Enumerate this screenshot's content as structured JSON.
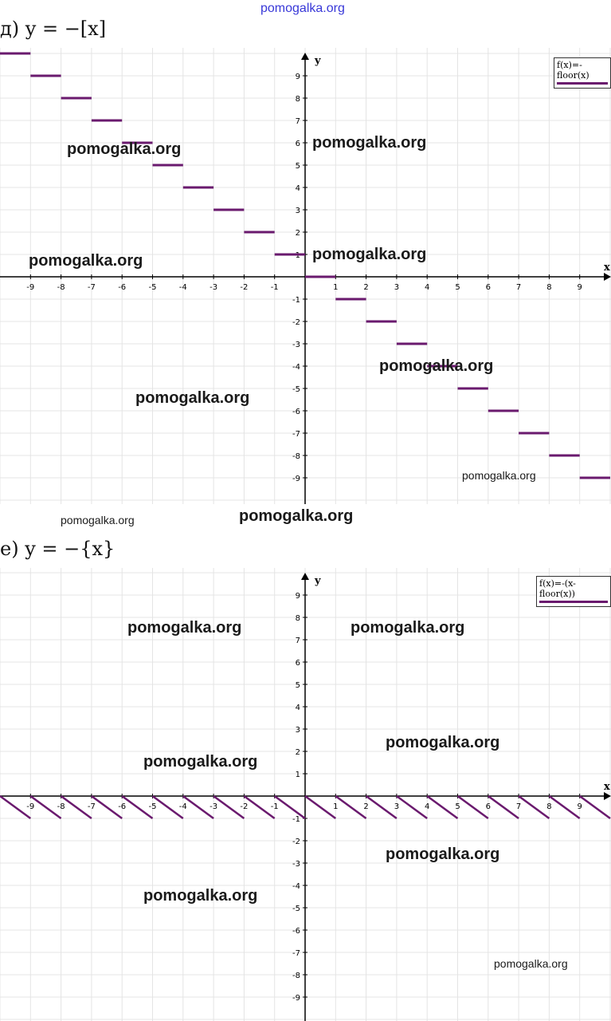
{
  "header_watermark": "pomogalka.org",
  "chart_data": [
    {
      "type": "line",
      "title": "д) y = −[x]",
      "legend": "f(x)=-floor(x)",
      "legend_position": "top-right",
      "xlabel": "x",
      "ylabel": "y",
      "xlim": [
        -10,
        10
      ],
      "ylim": [
        -10,
        10
      ],
      "xticks": [
        -9,
        -8,
        -7,
        -6,
        -5,
        -4,
        -3,
        -2,
        -1,
        1,
        2,
        3,
        4,
        5,
        6,
        7,
        8,
        9
      ],
      "yticks": [
        -9,
        -8,
        -7,
        -6,
        -5,
        -4,
        -3,
        -2,
        -1,
        1,
        2,
        3,
        4,
        5,
        6,
        7,
        8,
        9
      ],
      "grid": true,
      "function": "-floor(x)",
      "series": [
        {
          "name": "f(x)=-floor(x)",
          "segments": [
            [
              -10,
              -9,
              10
            ],
            [
              -9,
              -8,
              9
            ],
            [
              -8,
              -7,
              8
            ],
            [
              -7,
              -6,
              7
            ],
            [
              -6,
              -5,
              6
            ],
            [
              -5,
              -4,
              5
            ],
            [
              -4,
              -3,
              4
            ],
            [
              -3,
              -2,
              3
            ],
            [
              -2,
              -1,
              2
            ],
            [
              -1,
              0,
              1
            ],
            [
              0,
              1,
              0
            ],
            [
              1,
              2,
              -1
            ],
            [
              2,
              3,
              -2
            ],
            [
              3,
              4,
              -3
            ],
            [
              4,
              5,
              -4
            ],
            [
              5,
              6,
              -5
            ],
            [
              6,
              7,
              -6
            ],
            [
              7,
              8,
              -7
            ],
            [
              8,
              9,
              -8
            ],
            [
              9,
              10,
              -9
            ]
          ]
        }
      ],
      "color": "#6a1a6e"
    },
    {
      "type": "line",
      "title": "е) y = −{x}",
      "legend": "f(x)=-(x-floor(x))",
      "legend_position": "top-right",
      "xlabel": "x",
      "ylabel": "y",
      "xlim": [
        -10,
        10
      ],
      "ylim": [
        -10,
        10
      ],
      "xticks": [
        -9,
        -8,
        -7,
        -6,
        -5,
        -4,
        -3,
        -2,
        -1,
        1,
        2,
        3,
        4,
        5,
        6,
        7,
        8,
        9
      ],
      "yticks": [
        -9,
        -8,
        -7,
        -6,
        -5,
        -4,
        -3,
        -2,
        -1,
        1,
        2,
        3,
        4,
        5,
        6,
        7,
        8,
        9
      ],
      "grid": true,
      "function": "-(x-floor(x))",
      "series": [
        {
          "name": "f(x)=-(x-floor(x))",
          "sawtooth_periods": [
            -10,
            -9,
            -8,
            -7,
            -6,
            -5,
            -4,
            -3,
            -2,
            -1,
            0,
            1,
            2,
            3,
            4,
            5,
            6,
            7,
            8,
            9
          ]
        }
      ],
      "color": "#6a1a6e"
    }
  ],
  "watermarks": [
    "pomogalka.org",
    "pomogalka.org",
    "pomogalka.org",
    "pomogalka.org",
    "pomogalka.org",
    "pomogalka.org",
    "pomogalka.org",
    "pomogalka.org",
    "pomogalka.org",
    "pomogalka.org",
    "pomogalka.org",
    "pomogalka.org",
    "pomogalka.org",
    "pomogalka.org",
    "pomogalka.org",
    "pomogalka.org"
  ]
}
